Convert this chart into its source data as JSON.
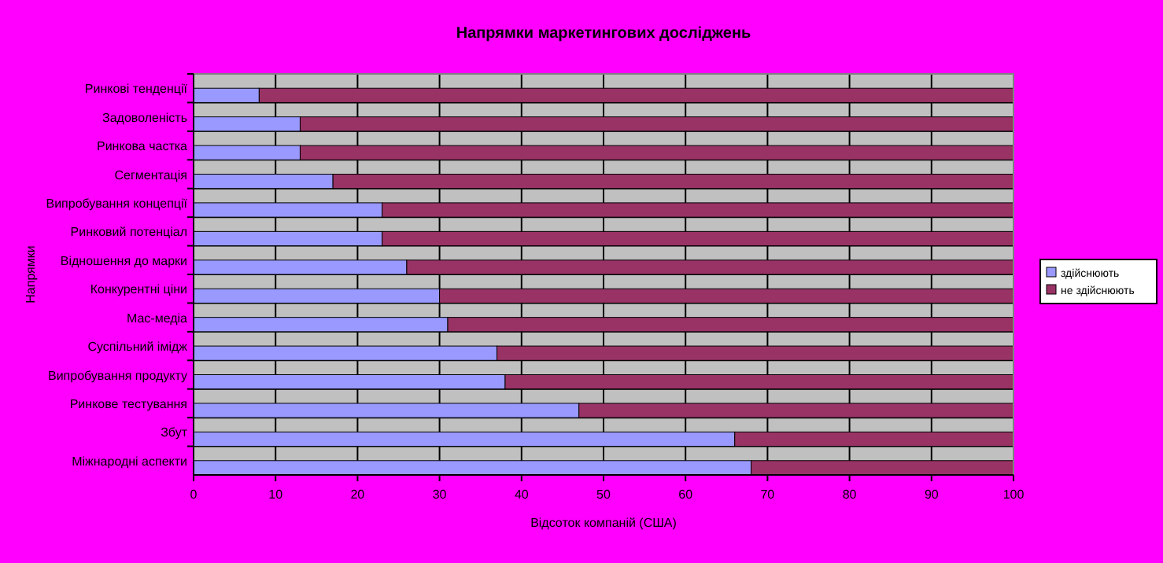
{
  "chart_data": {
    "type": "bar",
    "orientation": "horizontal",
    "stacked": true,
    "title": "Напрямки маркетингових досліджень",
    "xlabel": "Відсоток компаній (США)",
    "ylabel": "Напрямки",
    "categories": [
      "Ринкові тенденції",
      "Задоволеність",
      "Ринкова частка",
      "Сегментація",
      "Випробування концепції",
      "Ринковий потенціал",
      "Відношення до марки",
      "Конкурентні ціни",
      "Мас-медіа",
      "Суспільний імідж",
      "Випробування продукту",
      "Ринкове тестування",
      "Збут",
      "Міжнародні аспекти"
    ],
    "series": [
      {
        "name": "здійснюють",
        "color": "#9999ff",
        "values": [
          8,
          13,
          13,
          17,
          23,
          23,
          26,
          30,
          31,
          37,
          38,
          47,
          66,
          68
        ]
      },
      {
        "name": "не здійснюють",
        "color": "#993366",
        "values": [
          92,
          87,
          87,
          83,
          77,
          77,
          74,
          70,
          69,
          63,
          62,
          53,
          34,
          32
        ]
      }
    ],
    "xlim": [
      0,
      100
    ],
    "xticks": [
      0,
      10,
      20,
      30,
      40,
      50,
      60,
      70,
      80,
      90,
      100
    ],
    "grid": true,
    "legend": "right"
  }
}
